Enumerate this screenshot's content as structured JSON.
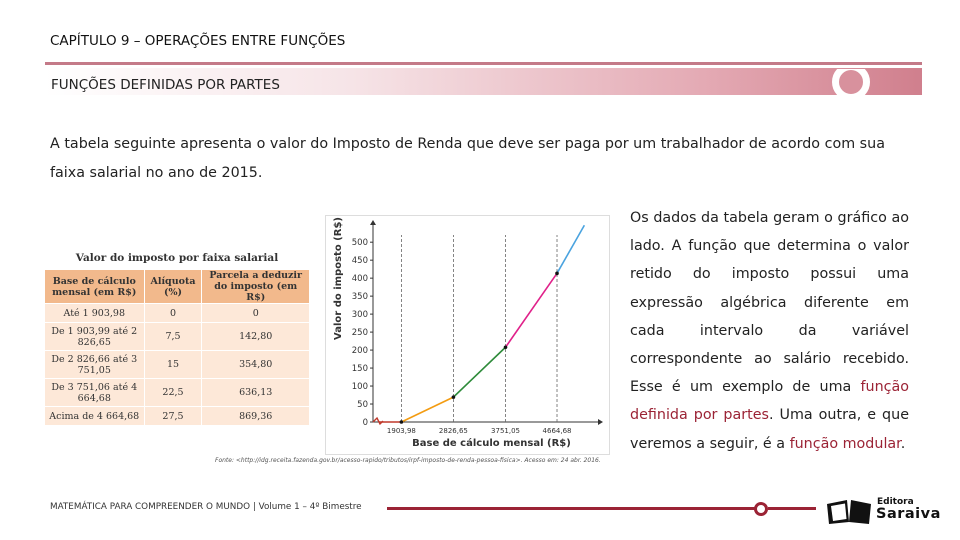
{
  "header": {
    "chapter_title": "CAPÍTULO  9 – OPERAÇÕES ENTRE FUNÇÕES",
    "section_title": "FUNÇÕES DEFINIDAS POR PARTES"
  },
  "intro": "A tabela seguinte apresenta o valor do Imposto de Renda que deve ser paga por um trabalhador de acordo com sua faixa salarial no ano de 2015.",
  "side_text": {
    "part1": "Os dados da tabela geram o gráfico ao lado. A função que determina o valor retido do imposto possui uma expressão algébrica diferente em cada intervalo da variável correspondente ao salário recebido. Esse é um exemplo de uma ",
    "term1": "função definida por partes",
    "part2": ". Uma outra, e que veremos a seguir, é a ",
    "term2": "função modular",
    "part3": "."
  },
  "table": {
    "title": "Valor do imposto por faixa salarial",
    "headers": [
      "Base de cálculo mensal (em R$)",
      "Alíquota (%)",
      "Parcela a deduzir do imposto (em R$)"
    ],
    "rows": [
      [
        "Até 1 903,98",
        "0",
        "0"
      ],
      [
        "De 1 903,99 até 2 826,65",
        "7,5",
        "142,80"
      ],
      [
        "De 2 826,66 até 3 751,05",
        "15",
        "354,80"
      ],
      [
        "De 3 751,06 até 4 664,68",
        "22,5",
        "636,13"
      ],
      [
        "Acima de 4 664,68",
        "27,5",
        "869,36"
      ]
    ]
  },
  "chart_data": {
    "type": "line",
    "ylabel": "Valor do imposto (R$)",
    "xlabel": "Base de cálculo mensal (R$)",
    "y_ticks": [
      0,
      50,
      100,
      150,
      200,
      250,
      300,
      350,
      400,
      450,
      500
    ],
    "x_ticks": [
      "1903,98",
      "2826,65",
      "3751,05",
      "4664,68"
    ],
    "x_tick_values": [
      1903.98,
      2826.65,
      3751.05,
      4664.68
    ],
    "ylim": [
      0,
      520
    ],
    "xlim": [
      1400,
      5250
    ],
    "series": [
      {
        "color": "#c0392b",
        "values": [
          [
            1500,
            0
          ],
          [
            1903.98,
            0
          ]
        ]
      },
      {
        "color": "#f39c12",
        "values": [
          [
            1903.98,
            0
          ],
          [
            2826.65,
            69.2
          ]
        ]
      },
      {
        "color": "#2e8b3a",
        "values": [
          [
            2826.65,
            69.2
          ],
          [
            3751.05,
            207.86
          ]
        ]
      },
      {
        "color": "#e0218a",
        "values": [
          [
            3751.05,
            207.86
          ],
          [
            4664.68,
            413.42
          ]
        ]
      },
      {
        "color": "#4aa3df",
        "values": [
          [
            4664.68,
            413.42
          ],
          [
            5150,
            547
          ]
        ]
      }
    ],
    "marked_points": [
      [
        1903.98,
        0
      ],
      [
        2826.65,
        69.2
      ],
      [
        3751.05,
        207.86
      ],
      [
        4664.68,
        413.42
      ]
    ],
    "source": "Fonte: <http://idg.receita.fazenda.gov.br/acesso-rapido/tributos/irpf-imposto-de-renda-pessoa-fisica>. Acesso em: 24 abr. 2016."
  },
  "footer": {
    "text": "MATEMÁTICA PARA COMPREENDER O MUNDO | Volume 1 – 4º Bimestre",
    "logo_small": "Editora",
    "logo_big": "Saraiva"
  }
}
